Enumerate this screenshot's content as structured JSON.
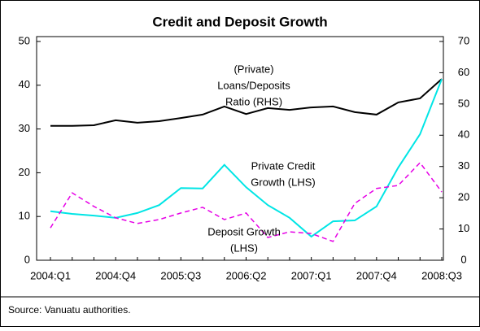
{
  "chart_data": {
    "type": "line",
    "title": "Credit and Deposit Growth",
    "categories": [
      "2004:Q1",
      null,
      null,
      "2004:Q4",
      null,
      null,
      "2005:Q3",
      null,
      null,
      "2006:Q2",
      null,
      null,
      "2007:Q1",
      null,
      null,
      "2007:Q4",
      null,
      null,
      "2008:Q3"
    ],
    "series": [
      {
        "name": "(Private) Loans/Deposits Ratio (RHS)",
        "label_lines": [
          "(Private)",
          "Loans/Deposits",
          "Ratio (RHS)"
        ],
        "axis": "y2",
        "color": "#000000",
        "dashed": false,
        "values": [
          43,
          43,
          43.2,
          44.8,
          44,
          44.5,
          45.5,
          46.6,
          49.2,
          46.8,
          48.7,
          48.1,
          48.9,
          49.2,
          47.4,
          46.6,
          50.5,
          51.8,
          58
        ]
      },
      {
        "name": "Private Credit Growth (LHS)",
        "label_lines": [
          "Private Credit",
          "Growth (LHS)"
        ],
        "axis": "y",
        "color": "#00e5e5",
        "dashed": false,
        "values": [
          11.2,
          10.6,
          10.2,
          9.7,
          10.8,
          12.6,
          16.5,
          16.4,
          21.8,
          16.7,
          12.6,
          9.7,
          5.4,
          8.9,
          9.1,
          12.3,
          21.2,
          28.8,
          41.4
        ]
      },
      {
        "name": "Deposit Growth (LHS)",
        "label_lines": [
          "Deposit Growth",
          "(LHS)"
        ],
        "axis": "y",
        "color": "#e600e6",
        "dashed": true,
        "values": [
          7.4,
          15.4,
          12.3,
          9.7,
          8.4,
          9.3,
          10.8,
          12.1,
          9.3,
          10.8,
          5.2,
          6.5,
          6.1,
          4.3,
          13,
          16.4,
          17.1,
          22.3,
          15.6
        ]
      }
    ],
    "ylim": [
      0,
      50
    ],
    "yticks": [
      0,
      10,
      20,
      30,
      40,
      50
    ],
    "y2lim": [
      0,
      70
    ],
    "y2ticks": [
      0,
      10,
      20,
      30,
      40,
      50,
      60,
      70
    ],
    "grid": false,
    "source": "Source: Vanuatu authorities."
  }
}
